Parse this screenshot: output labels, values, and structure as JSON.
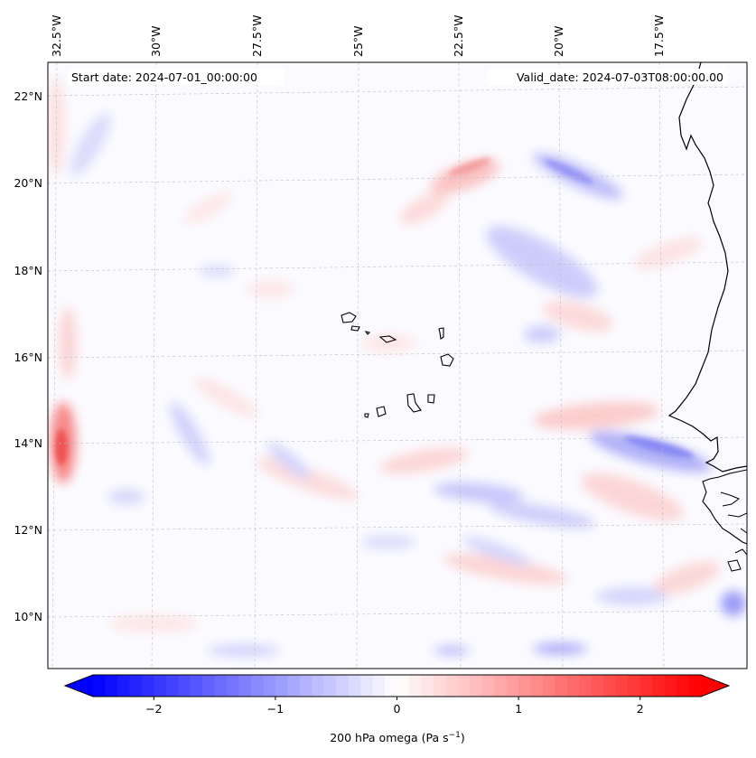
{
  "map": {
    "start_label": "Start date: 2024-07-01_00:00:00",
    "valid_label": "Valid_date: 2024-07-03T08:00:00.00",
    "lon_labels": [
      "32.5°W",
      "30°W",
      "27.5°W",
      "25°W",
      "22.5°W",
      "20°W",
      "17.5°W"
    ],
    "lat_labels": [
      "22°N",
      "20°N",
      "18°N",
      "16°N",
      "14°N",
      "12°N",
      "10°N"
    ]
  },
  "colorbar": {
    "label": "200 hPa omega (Pa s",
    "label_exp": "−1",
    "label_end": ")",
    "tick_labels": [
      "−2",
      "−1",
      "0",
      "1",
      "2"
    ],
    "ticks": [
      -2,
      -1,
      0,
      1,
      2
    ],
    "range": [
      -2.5,
      2.5
    ],
    "negative_color": "#0000ff",
    "zero_color": "#ffffff",
    "positive_color": "#ff0000"
  }
}
